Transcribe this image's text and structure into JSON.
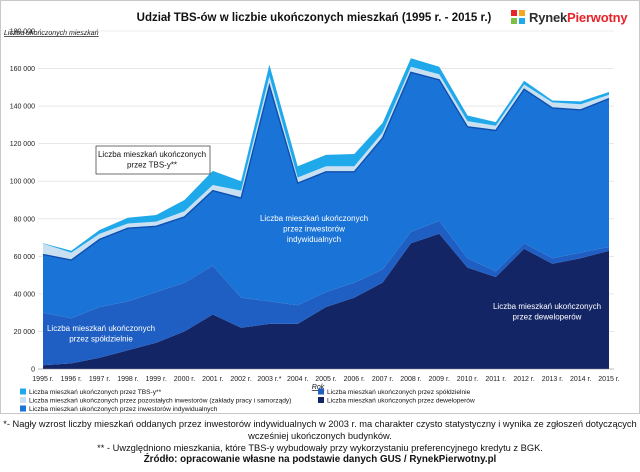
{
  "brand": {
    "name_part1": "Rynek",
    "name_part2": "Pierwotny"
  },
  "footnotes": {
    "note1": "*- Nagły wzrost liczby mieszkań oddanych przez inwestorów indywidualnych w 2003 r. ma charakter czysto statystyczny i wynika ze zgłoszeń dotyczących wcześniej ukończonych budynków.",
    "note2": "** - Uwzględniono mieszkania, które TBS-y wybudowały przy wykorzystaniu preferencyjnego kredytu z BGK.",
    "source": "Źródło: opracowanie własne na podstawie danych GUS / RynekPierwotny.pl"
  },
  "chart_data": {
    "type": "area",
    "stacked": true,
    "title": "Udział TBS-ów w liczbie ukończonych mieszkań (1995 r. - 2015 r.)",
    "ylabel": "Liczba ukończonych mieszkań",
    "xlabel": "Rok",
    "ylim": [
      0,
      180000
    ],
    "yticks": [
      0,
      20000,
      40000,
      60000,
      80000,
      100000,
      120000,
      140000,
      160000,
      180000
    ],
    "ytick_labels": [
      "0",
      "20 000",
      "40 000",
      "60 000",
      "80 000",
      "100 000",
      "120 000",
      "140 000",
      "160 000",
      "180 000"
    ],
    "categories": [
      "1995 r.",
      "1996 r.",
      "1997 r.",
      "1998 r.",
      "1999 r.",
      "2000 r.",
      "2001 r.",
      "2002 r.",
      "2003 r.*",
      "2004 r.",
      "2005 r.",
      "2006 r.",
      "2007 r.",
      "2008 r.",
      "2009 r.",
      "2010 r.",
      "2011 r.",
      "2012 r.",
      "2013 r.",
      "2014 r.",
      "2015 r."
    ],
    "series": [
      {
        "name": "Liczba mieszkań ukończonych przez deweloperów",
        "color": "#142566",
        "values": [
          2000,
          3000,
          6000,
          10000,
          14000,
          20000,
          29000,
          22000,
          24000,
          24000,
          33000,
          38000,
          46000,
          67000,
          72000,
          54000,
          49000,
          64000,
          56000,
          59000,
          63000
        ]
      },
      {
        "name": "Liczba mieszkań ukończonych przez spółdzielnie",
        "color": "#1f5fc4",
        "values": [
          28000,
          24000,
          27000,
          26000,
          27000,
          26000,
          26000,
          16000,
          12000,
          10000,
          8000,
          8000,
          7000,
          6000,
          7000,
          5000,
          3000,
          3000,
          3000,
          3000,
          2000
        ]
      },
      {
        "name": "Liczba mieszkań ukończonych przez inwestorów indywidualnych",
        "color": "#1a73d6",
        "values": [
          31000,
          31000,
          36000,
          39000,
          35000,
          35000,
          40000,
          53000,
          115000,
          65000,
          64000,
          59000,
          70000,
          85000,
          75000,
          70000,
          75000,
          82000,
          80000,
          76000,
          79000
        ]
      },
      {
        "name": "Liczba mieszkań ukończonych przez pozostałych inwestorów (zakłady pracy i samorządy)",
        "color": "#c9dff2",
        "values": [
          5800,
          4000,
          3000,
          2500,
          2500,
          3000,
          3000,
          4000,
          5000,
          3000,
          3000,
          3000,
          3000,
          3000,
          3000,
          3000,
          2500,
          2500,
          3000,
          3000,
          2000
        ]
      },
      {
        "name": "Liczba mieszkań ukończonych przez TBS-y**",
        "color": "#1fa8ea",
        "values": [
          200,
          1000,
          2000,
          3000,
          3500,
          6000,
          7500,
          5000,
          6000,
          6000,
          6000,
          6500,
          5000,
          4500,
          4000,
          3000,
          2000,
          2000,
          1000,
          1500,
          1500
        ]
      }
    ],
    "annotations": [
      {
        "text": [
          "Liczba mieszkań ukończonych",
          "przez TBS-y**"
        ],
        "boxed": true,
        "anchor": "tbs"
      },
      {
        "text": [
          "Liczba mieszkań ukończonych",
          "przez inwestorów",
          "indywidualnych"
        ],
        "boxed": false,
        "anchor": "individual"
      },
      {
        "text": [
          "Liczba mieszkań ukończonych",
          "przez deweloperów"
        ],
        "boxed": false,
        "anchor": "developers"
      },
      {
        "text": [
          "Liczba mieszkań ukończonych",
          "przez spółdzielnie"
        ],
        "boxed": false,
        "anchor": "cooperatives"
      }
    ],
    "legend_order": [
      4,
      3,
      2,
      1,
      0
    ]
  }
}
